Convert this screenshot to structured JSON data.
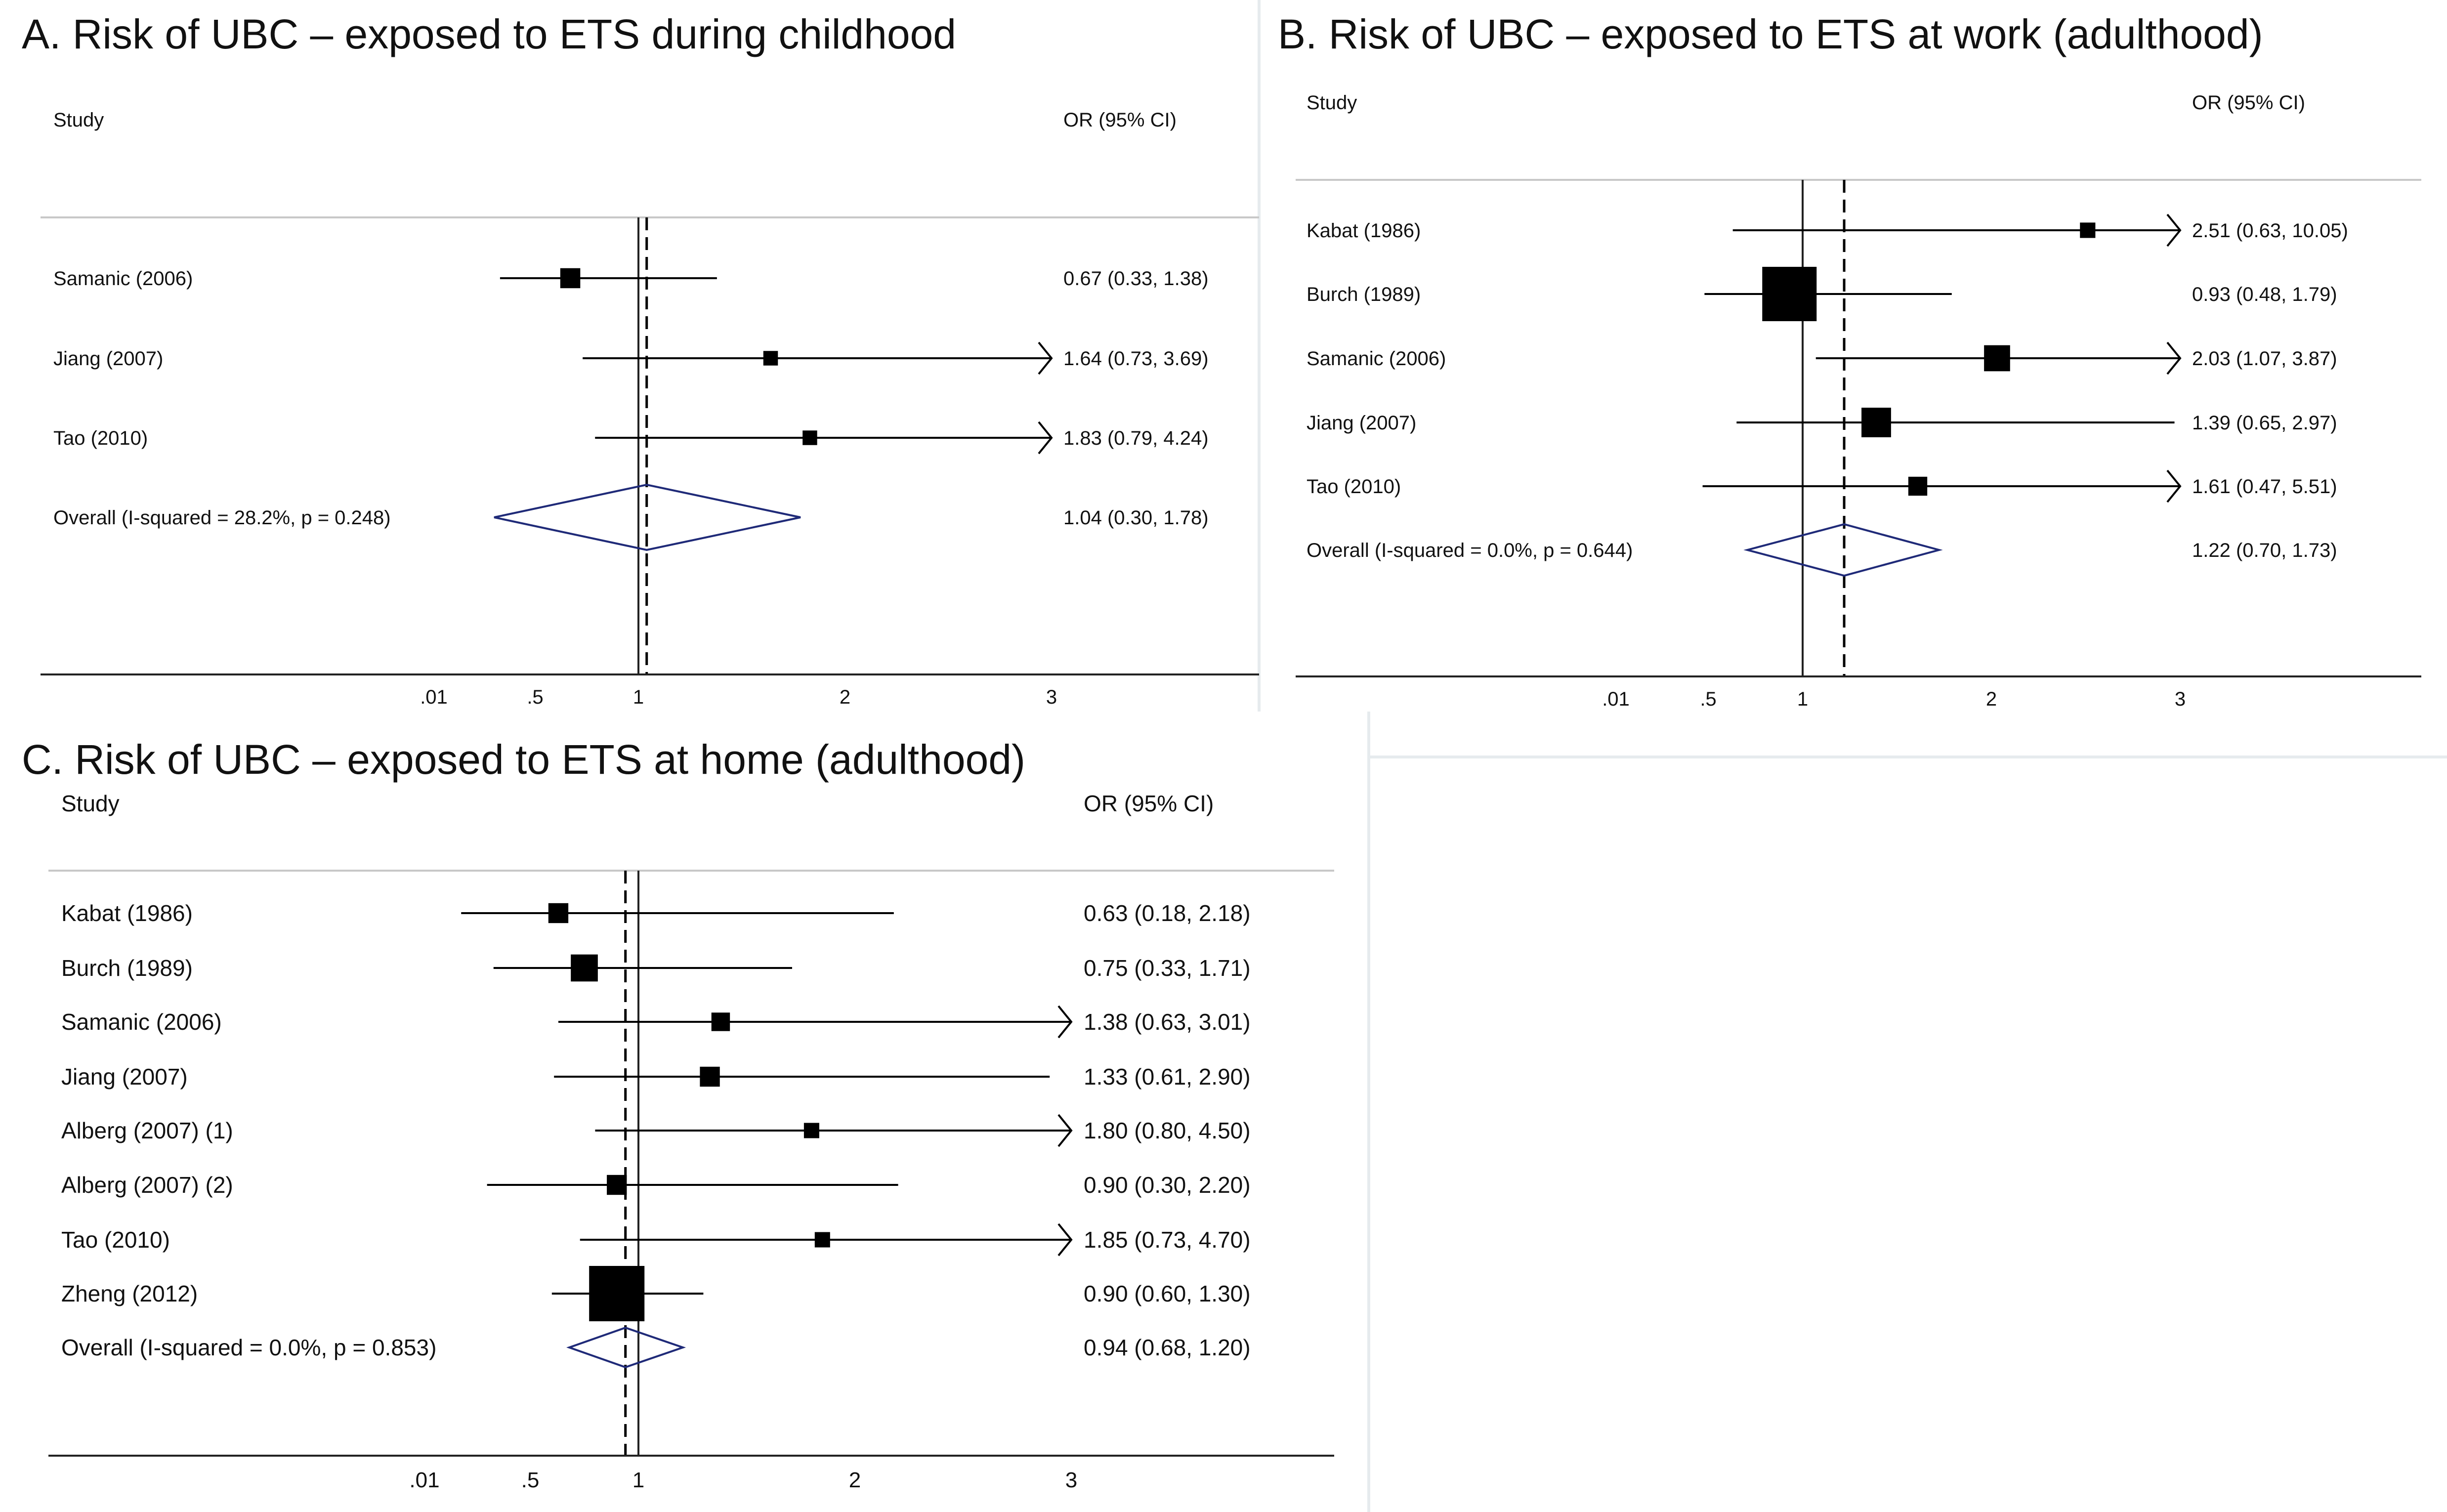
{
  "chart_data": [
    {
      "type": "forest",
      "panel": "A",
      "title": "A. Risk of UBC – exposed to ETS during childhood",
      "study_header": "Study",
      "effect_header": "OR (95% CI)",
      "x_ticks": [
        ".01",
        ".5",
        "1",
        "2",
        "3"
      ],
      "studies": [
        {
          "label": "Samanic (2006)",
          "or": 0.67,
          "lo": 0.33,
          "hi": 1.38,
          "text": "0.67 (0.33, 1.38)",
          "weight": 3,
          "ci_arrow": false
        },
        {
          "label": "Jiang (2007)",
          "or": 1.64,
          "lo": 0.73,
          "hi": 3.69,
          "text": "1.64 (0.73, 3.69)",
          "weight": 1,
          "ci_arrow": true
        },
        {
          "label": "Tao (2010)",
          "or": 1.83,
          "lo": 0.79,
          "hi": 4.24,
          "text": "1.83 (0.79, 4.24)",
          "weight": 1,
          "ci_arrow": true
        }
      ],
      "overall": {
        "label": "Overall  (I-squared = 28.2%, p = 0.248)",
        "or": 1.04,
        "lo": 0.3,
        "hi": 1.78,
        "text": "1.04 (0.30, 1.78)"
      }
    },
    {
      "type": "forest",
      "panel": "B",
      "title": "B. Risk of UBC – exposed to ETS at work (adulthood)",
      "study_header": "Study",
      "effect_header": "OR (95% CI)",
      "x_ticks": [
        ".01",
        ".5",
        "1",
        "2",
        "3"
      ],
      "studies": [
        {
          "label": "Kabat (1986)",
          "or": 2.51,
          "lo": 0.63,
          "hi": 10.05,
          "text": "2.51 (0.63, 10.05)",
          "weight": 1,
          "ci_arrow": true
        },
        {
          "label": "Burch (1989)",
          "or": 0.93,
          "lo": 0.48,
          "hi": 1.79,
          "text": "0.93 (0.48, 1.79)",
          "weight": 12,
          "ci_arrow": false
        },
        {
          "label": "Samanic (2006)",
          "or": 2.03,
          "lo": 1.07,
          "hi": 3.87,
          "text": "2.03 (1.07, 3.87)",
          "weight": 4,
          "ci_arrow": true
        },
        {
          "label": "Jiang (2007)",
          "or": 1.39,
          "lo": 0.65,
          "hi": 2.97,
          "text": "1.39 (0.65, 2.97)",
          "weight": 5,
          "ci_arrow": false
        },
        {
          "label": "Tao (2010)",
          "or": 1.61,
          "lo": 0.47,
          "hi": 5.51,
          "text": "1.61 (0.47, 5.51)",
          "weight": 2,
          "ci_arrow": true
        }
      ],
      "overall": {
        "label": "Overall  (I-squared = 0.0%, p = 0.644)",
        "or": 1.22,
        "lo": 0.7,
        "hi": 1.73,
        "text": "1.22 (0.70, 1.73)"
      }
    },
    {
      "type": "forest",
      "panel": "C",
      "title": "C. Risk of UBC – exposed to ETS at home (adulthood)",
      "study_header": "Study",
      "effect_header": "OR (95% CI)",
      "x_ticks": [
        ".01",
        ".5",
        "1",
        "2",
        "3"
      ],
      "studies": [
        {
          "label": "Kabat (1986)",
          "or": 0.63,
          "lo": 0.18,
          "hi": 2.18,
          "text": "0.63 (0.18, 2.18)",
          "weight": 2,
          "ci_arrow": false
        },
        {
          "label": "Burch (1989)",
          "or": 0.75,
          "lo": 0.33,
          "hi": 1.71,
          "text": "0.75 (0.33, 1.71)",
          "weight": 4,
          "ci_arrow": false
        },
        {
          "label": "Samanic (2006)",
          "or": 1.38,
          "lo": 0.63,
          "hi": 3.01,
          "text": "1.38 (0.63, 3.01)",
          "weight": 1.6,
          "ci_arrow": true
        },
        {
          "label": "Jiang (2007)",
          "or": 1.33,
          "lo": 0.61,
          "hi": 2.9,
          "text": "1.33 (0.61, 2.90)",
          "weight": 2,
          "ci_arrow": false
        },
        {
          "label": "Alberg (2007) (1)",
          "or": 1.8,
          "lo": 0.8,
          "hi": 4.5,
          "text": "1.80 (0.80, 4.50)",
          "weight": 0.7,
          "ci_arrow": true
        },
        {
          "label": "Alberg (2007) (2)",
          "or": 0.9,
          "lo": 0.3,
          "hi": 2.2,
          "text": "0.90 (0.30, 2.20)",
          "weight": 2,
          "ci_arrow": false
        },
        {
          "label": "Tao (2010)",
          "or": 1.85,
          "lo": 0.73,
          "hi": 4.7,
          "text": "1.85 (0.73, 4.70)",
          "weight": 0.7,
          "ci_arrow": true
        },
        {
          "label": "Zheng (2012)",
          "or": 0.9,
          "lo": 0.6,
          "hi": 1.3,
          "text": "0.90 (0.60, 1.30)",
          "weight": 12,
          "ci_arrow": false
        }
      ],
      "overall": {
        "label": "Overall  (I-squared = 0.0%, p = 0.853)",
        "or": 0.94,
        "lo": 0.68,
        "hi": 1.2,
        "text": "0.94 (0.68, 1.20)"
      }
    }
  ],
  "colors": {
    "text": "#111111",
    "marker": "#000000",
    "diamond": "#1f2a78",
    "axis": "#222222",
    "rule": "#c8c8c8",
    "panel_border": "#e6ebee"
  }
}
